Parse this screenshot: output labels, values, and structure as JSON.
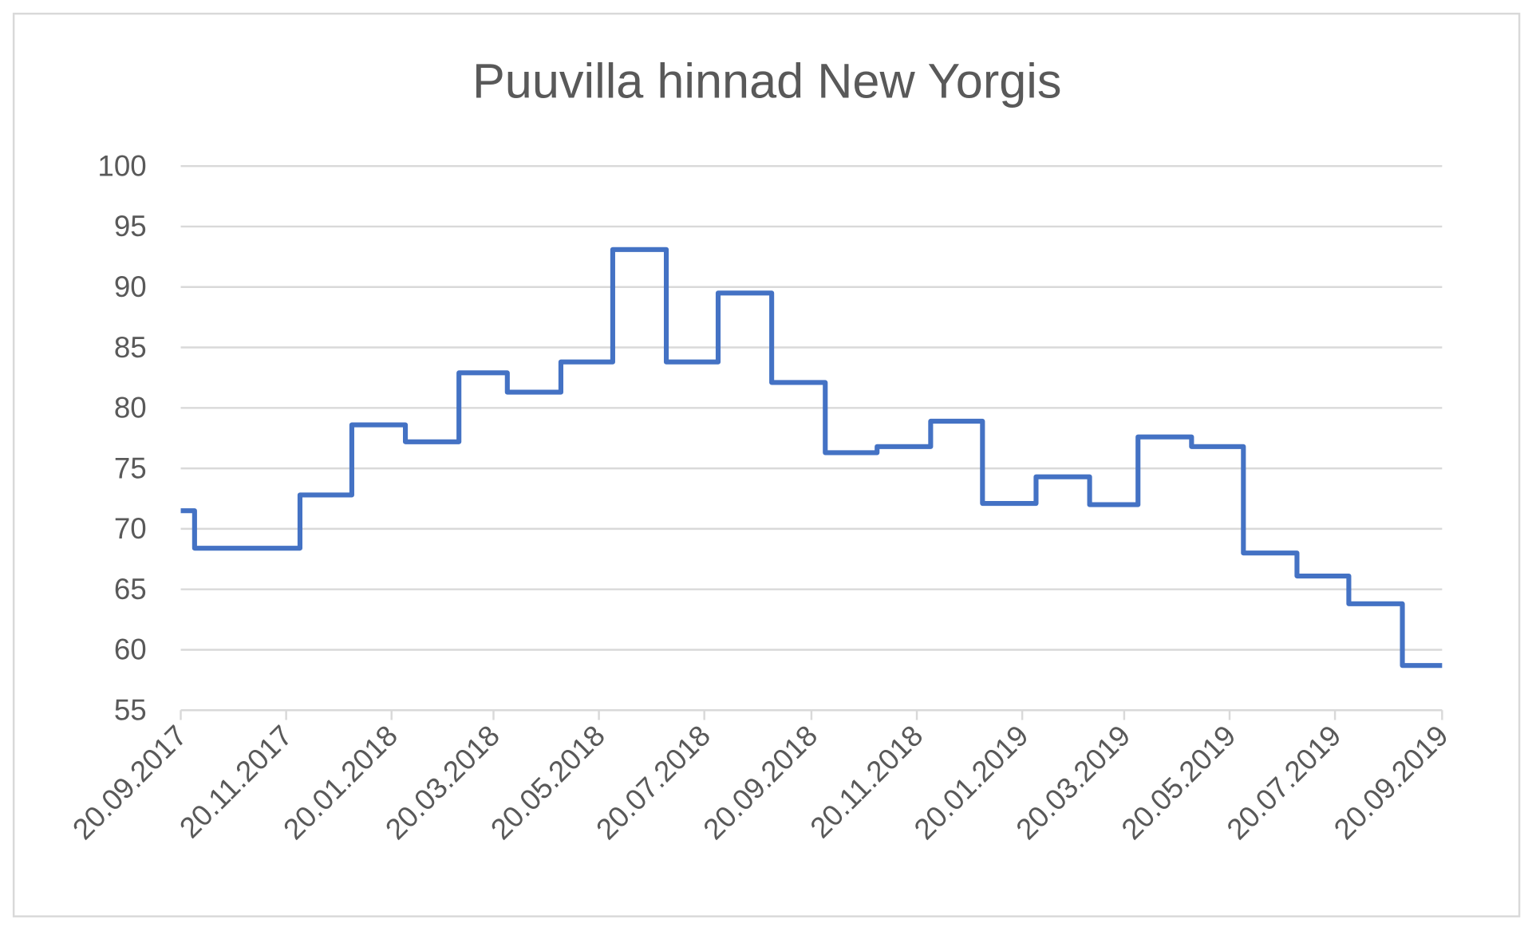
{
  "chart_data": {
    "type": "line",
    "step": true,
    "title": "Puuvilla hinnad New Yorgis",
    "xlabel": "",
    "ylabel": "",
    "ylim": [
      55,
      100
    ],
    "yticks": [
      55,
      60,
      65,
      70,
      75,
      80,
      85,
      90,
      95,
      100
    ],
    "xlim": [
      "20.09.2017",
      "20.09.2019"
    ],
    "xticks": [
      "20.09.2017",
      "20.11.2017",
      "20.01.2018",
      "20.03.2018",
      "20.05.2018",
      "20.07.2018",
      "20.09.2018",
      "20.11.2018",
      "20.01.2019",
      "20.03.2019",
      "20.05.2019",
      "20.07.2019",
      "20.09.2019"
    ],
    "grid": "horizontal",
    "line_color": "#4472C4",
    "x": [
      "20.09.2017",
      "28.09.2017",
      "28.11.2017",
      "28.12.2017",
      "28.01.2018",
      "28.02.2018",
      "28.03.2018",
      "28.04.2018",
      "28.05.2018",
      "28.06.2018",
      "28.07.2018",
      "28.08.2018",
      "28.09.2018",
      "28.10.2018",
      "28.11.2018",
      "28.12.2018",
      "28.01.2019",
      "28.02.2019",
      "28.03.2019",
      "28.04.2019",
      "28.05.2019",
      "28.06.2019",
      "28.07.2019",
      "28.08.2019",
      "20.09.2019"
    ],
    "values": [
      71.5,
      68.4,
      72.8,
      78.6,
      77.2,
      82.9,
      81.3,
      83.8,
      93.1,
      83.8,
      89.5,
      82.1,
      76.3,
      76.8,
      78.9,
      72.1,
      74.3,
      72.0,
      77.6,
      76.8,
      68.0,
      66.1,
      63.8,
      58.7,
      58.7
    ]
  }
}
